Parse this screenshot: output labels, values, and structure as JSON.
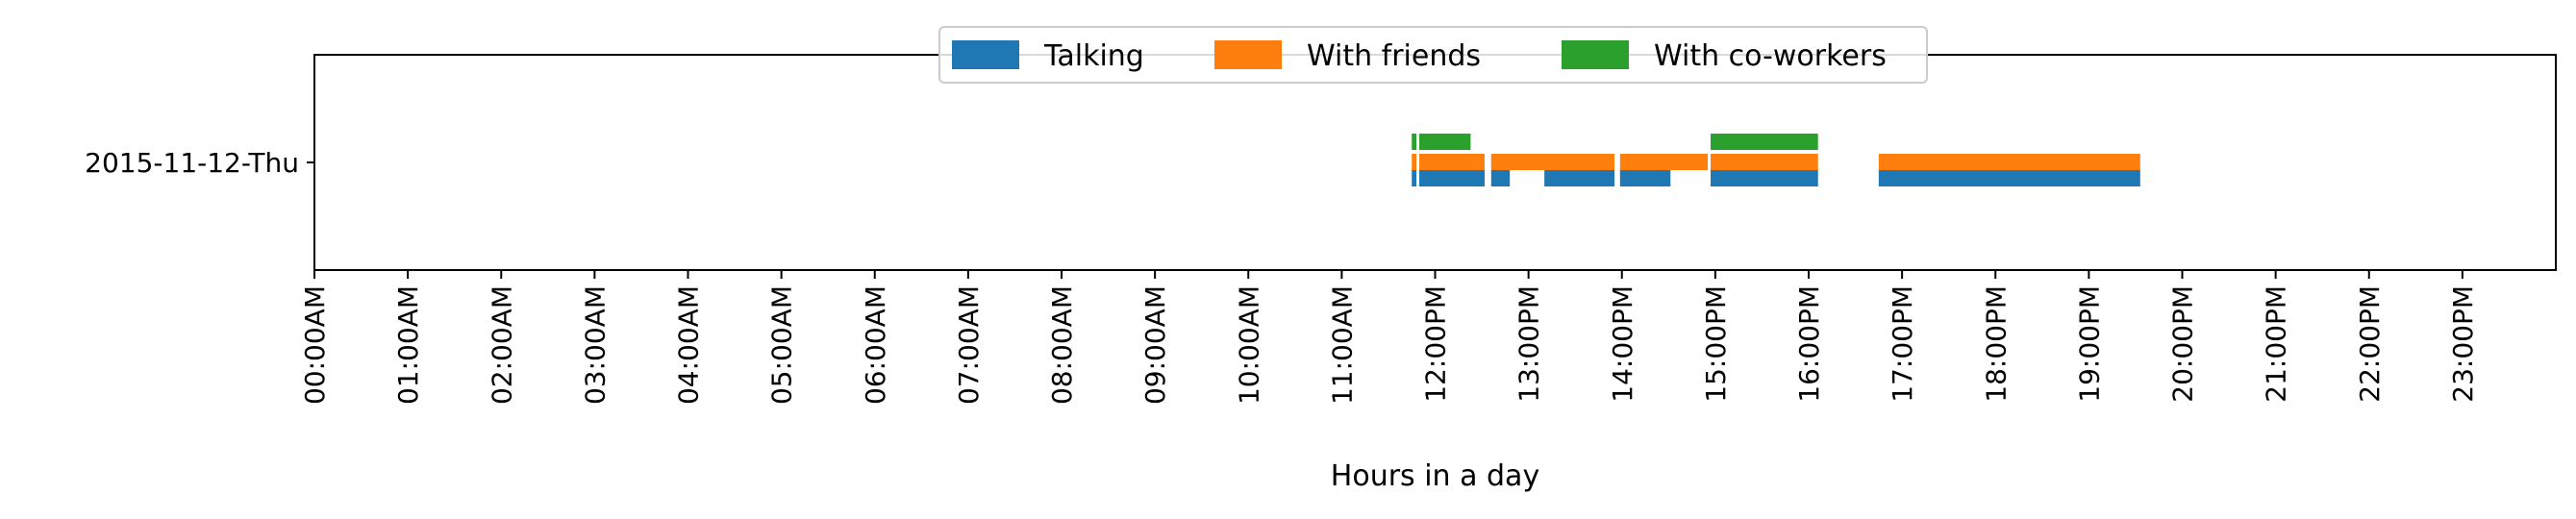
{
  "chart_data": {
    "type": "bar",
    "orientation": "horizontal-timeline",
    "xlabel": "Hours in a day",
    "ylabel": "",
    "xlim": [
      0,
      24
    ],
    "categories": [
      "2015-11-12-Thu"
    ],
    "x_ticks": [
      {
        "value": 0,
        "label": "00:00AM"
      },
      {
        "value": 1,
        "label": "01:00AM"
      },
      {
        "value": 2,
        "label": "02:00AM"
      },
      {
        "value": 3,
        "label": "03:00AM"
      },
      {
        "value": 4,
        "label": "04:00AM"
      },
      {
        "value": 5,
        "label": "05:00AM"
      },
      {
        "value": 6,
        "label": "06:00AM"
      },
      {
        "value": 7,
        "label": "07:00AM"
      },
      {
        "value": 8,
        "label": "08:00AM"
      },
      {
        "value": 9,
        "label": "09:00AM"
      },
      {
        "value": 10,
        "label": "10:00AM"
      },
      {
        "value": 11,
        "label": "11:00AM"
      },
      {
        "value": 12,
        "label": "12:00PM"
      },
      {
        "value": 13,
        "label": "13:00PM"
      },
      {
        "value": 14,
        "label": "14:00PM"
      },
      {
        "value": 15,
        "label": "15:00PM"
      },
      {
        "value": 16,
        "label": "16:00PM"
      },
      {
        "value": 17,
        "label": "17:00PM"
      },
      {
        "value": 18,
        "label": "18:00PM"
      },
      {
        "value": 19,
        "label": "19:00PM"
      },
      {
        "value": 20,
        "label": "20:00PM"
      },
      {
        "value": 21,
        "label": "21:00PM"
      },
      {
        "value": 22,
        "label": "22:00PM"
      },
      {
        "value": 23,
        "label": "23:00PM"
      }
    ],
    "legend_position": "top-center",
    "grid": false,
    "series": [
      {
        "name": "Talking",
        "color": "#1f77b4",
        "intervals": [
          [
            11.75,
            11.8
          ],
          [
            11.83,
            12.53
          ],
          [
            12.6,
            12.8
          ],
          [
            13.17,
            13.92
          ],
          [
            13.98,
            14.52
          ],
          [
            14.95,
            16.1
          ],
          [
            16.75,
            19.55
          ]
        ]
      },
      {
        "name": "With friends",
        "color": "#ff7f0e",
        "intervals": [
          [
            11.75,
            11.8
          ],
          [
            11.83,
            12.53
          ],
          [
            12.6,
            13.92
          ],
          [
            13.98,
            14.92
          ],
          [
            14.95,
            16.1
          ],
          [
            16.75,
            19.55
          ]
        ]
      },
      {
        "name": "With co-workers",
        "color": "#2ca02c",
        "intervals": [
          [
            11.75,
            11.8
          ],
          [
            11.83,
            12.38
          ],
          [
            14.95,
            16.1
          ]
        ]
      }
    ]
  }
}
